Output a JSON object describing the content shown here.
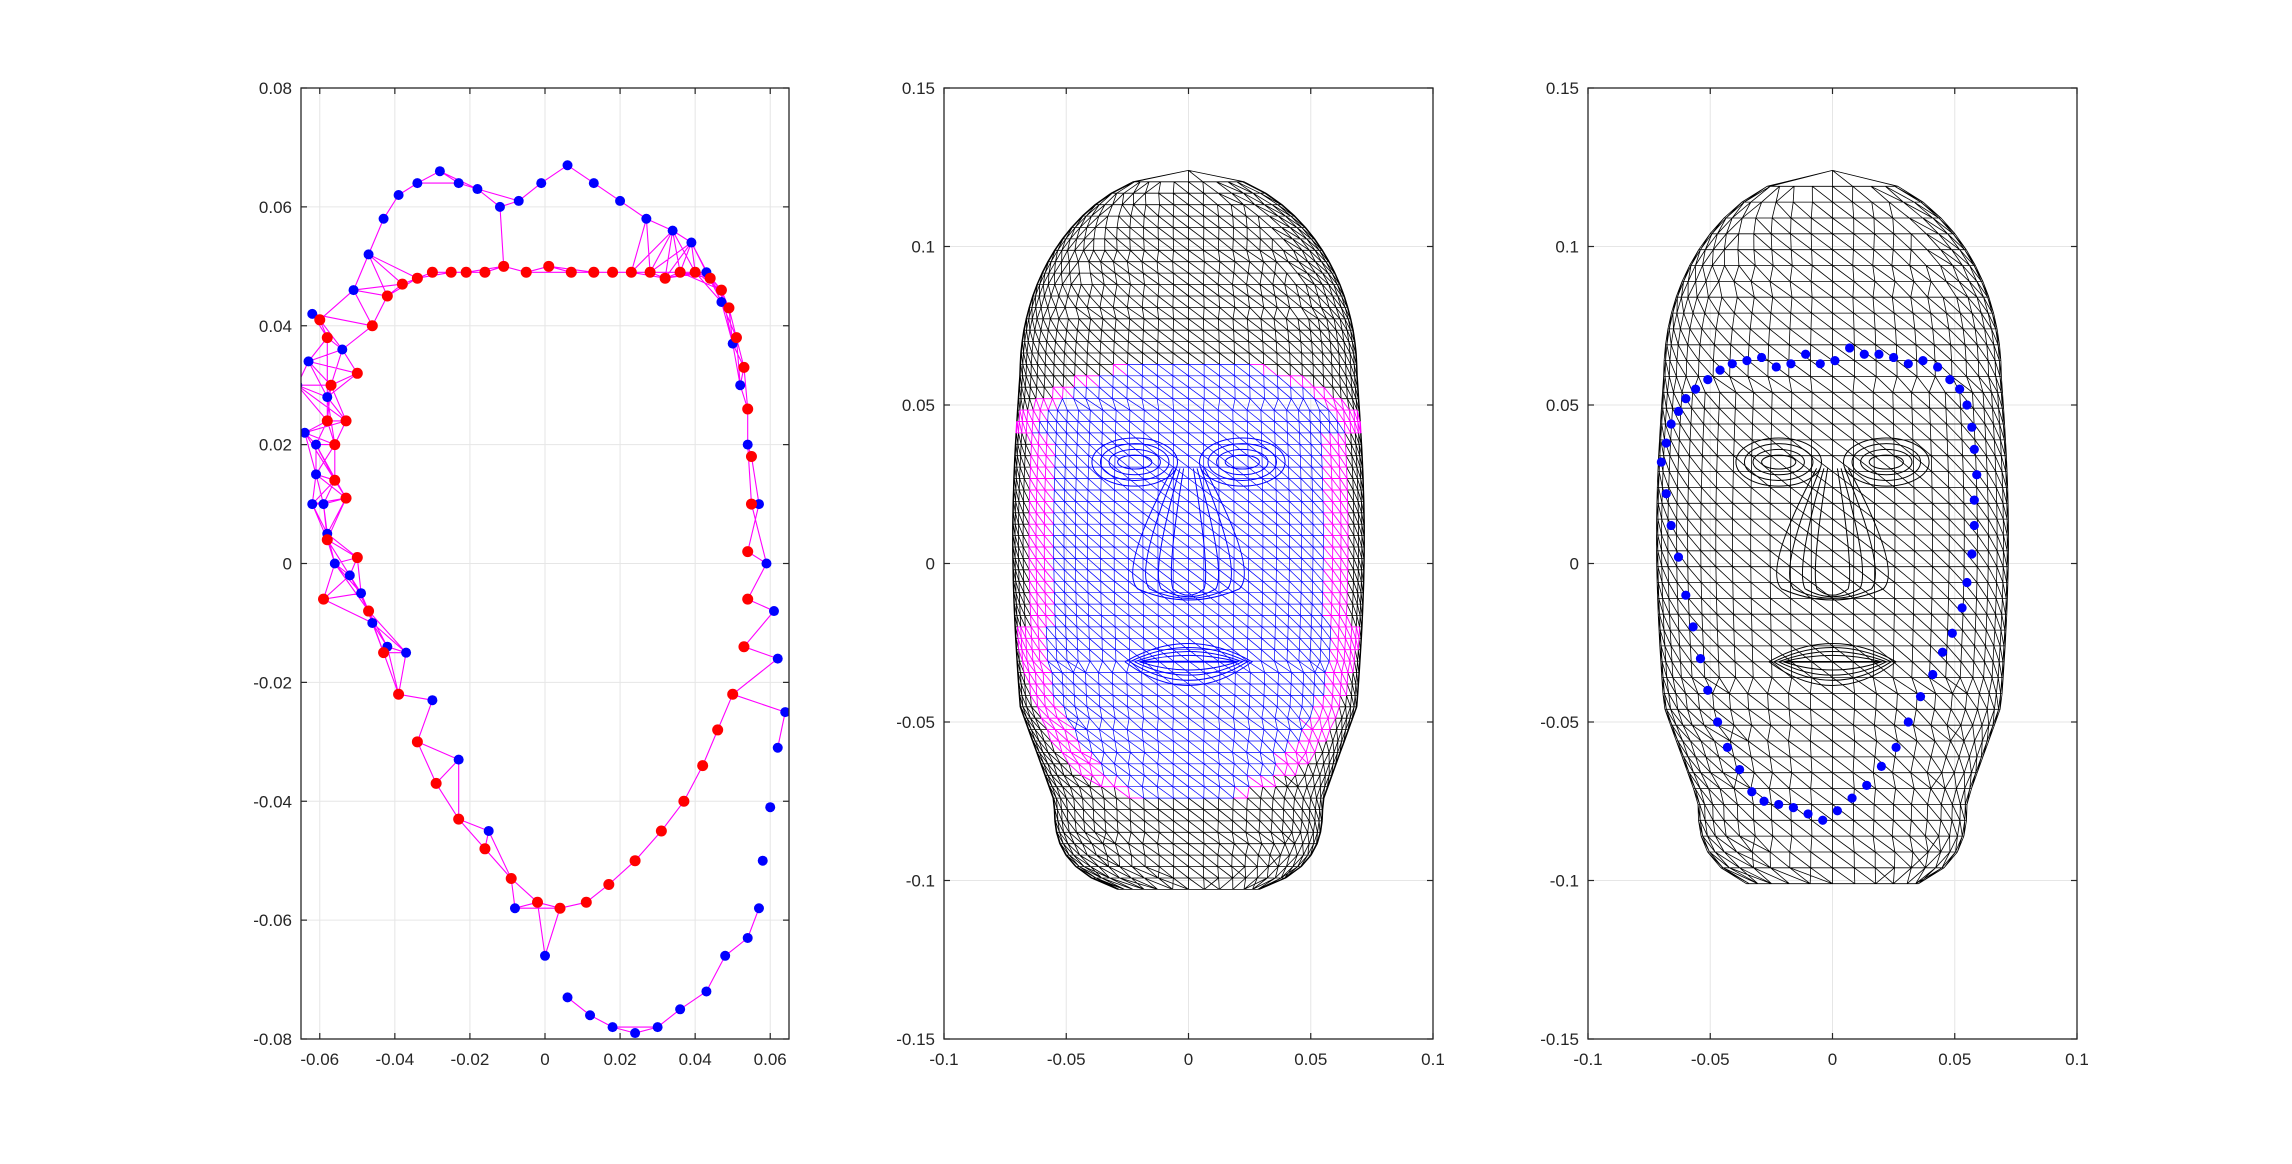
{
  "colors": {
    "axis": "#262626",
    "grid": "#e6e6e6",
    "outer_point": "#0000ff",
    "inner_point": "#ff0000",
    "band_mesh": "#ff00ff",
    "head_mesh": "#000000",
    "face_mesh": "#0000ff"
  },
  "chart_data": [
    {
      "type": "scatter",
      "title": "",
      "xlabel": "",
      "ylabel": "",
      "xlim": [
        -0.065,
        0.065
      ],
      "ylim": [
        -0.08,
        0.08
      ],
      "grid": true,
      "xticks": [
        -0.06,
        -0.04,
        -0.02,
        0,
        0.02,
        0.04,
        0.06
      ],
      "xtick_labels": [
        "-0.06",
        "-0.04",
        "-0.02",
        "0",
        "0.02",
        "0.04",
        "0.06"
      ],
      "yticks": [
        -0.08,
        -0.06,
        -0.04,
        -0.02,
        0,
        0.02,
        0.04,
        0.06,
        0.08
      ],
      "ytick_labels": [
        "-0.08",
        "-0.06",
        "-0.04",
        "-0.02",
        "0",
        "0.02",
        "0.04",
        "0.06",
        "0.08"
      ],
      "series": [
        {
          "color": "#0000ff",
          "marker": "dot",
          "x": [
            -0.062,
            -0.063,
            -0.066,
            -0.064,
            -0.061,
            -0.059,
            -0.058,
            -0.056,
            -0.052,
            -0.049,
            -0.046,
            -0.042,
            -0.037,
            -0.03,
            -0.023,
            -0.015,
            -0.008,
            0.0,
            0.006,
            0.012,
            0.018,
            0.024,
            0.03,
            0.036,
            0.043,
            0.048,
            0.054,
            0.057,
            0.058,
            0.06,
            0.062,
            0.064,
            0.062,
            0.061,
            0.059,
            0.057,
            0.054,
            0.052,
            0.05,
            0.047,
            0.043,
            0.039,
            0.034,
            0.027,
            0.02,
            0.013,
            0.006,
            -0.001,
            -0.007,
            -0.012,
            -0.018,
            -0.023,
            -0.028,
            -0.034,
            -0.039,
            -0.043,
            -0.047,
            -0.051,
            -0.054,
            -0.058,
            -0.061,
            -0.062
          ],
          "y": [
            0.042,
            0.034,
            0.03,
            0.022,
            0.015,
            0.01,
            0.005,
            0.0,
            -0.002,
            -0.005,
            -0.01,
            -0.014,
            -0.015,
            -0.023,
            -0.033,
            -0.045,
            -0.058,
            -0.066,
            -0.073,
            -0.076,
            -0.078,
            -0.079,
            -0.078,
            -0.075,
            -0.072,
            -0.066,
            -0.063,
            -0.058,
            -0.05,
            -0.041,
            -0.031,
            -0.025,
            -0.016,
            -0.008,
            0.0,
            0.01,
            0.02,
            0.03,
            0.037,
            0.044,
            0.049,
            0.054,
            0.056,
            0.058,
            0.061,
            0.064,
            0.067,
            0.064,
            0.061,
            0.06,
            0.063,
            0.064,
            0.066,
            0.064,
            0.062,
            0.058,
            0.052,
            0.046,
            0.036,
            0.028,
            0.02,
            0.01
          ]
        },
        {
          "color": "#ff0000",
          "marker": "dot",
          "x": [
            -0.06,
            -0.058,
            -0.057,
            -0.058,
            -0.056,
            -0.053,
            -0.05,
            -0.047,
            -0.043,
            -0.039,
            -0.034,
            -0.029,
            -0.023,
            -0.016,
            -0.009,
            -0.002,
            0.004,
            0.011,
            0.017,
            0.024,
            0.031,
            0.037,
            0.042,
            0.046,
            0.05,
            0.053,
            0.054,
            0.054,
            0.055,
            0.055,
            0.054,
            0.053,
            0.051,
            0.049,
            0.047,
            0.044,
            0.04,
            0.036,
            0.032,
            0.028,
            0.023,
            0.018,
            0.013,
            0.007,
            0.001,
            -0.005,
            -0.011,
            -0.016,
            -0.021,
            -0.025,
            -0.03,
            -0.034,
            -0.038,
            -0.042,
            -0.046,
            -0.05,
            -0.053,
            -0.056,
            -0.058,
            -0.059
          ],
          "y": [
            0.041,
            0.038,
            0.03,
            0.024,
            0.02,
            0.011,
            0.001,
            -0.008,
            -0.015,
            -0.022,
            -0.03,
            -0.037,
            -0.043,
            -0.048,
            -0.053,
            -0.057,
            -0.058,
            -0.057,
            -0.054,
            -0.05,
            -0.045,
            -0.04,
            -0.034,
            -0.028,
            -0.022,
            -0.014,
            -0.006,
            0.002,
            0.01,
            0.018,
            0.026,
            0.033,
            0.038,
            0.043,
            0.046,
            0.048,
            0.049,
            0.049,
            0.048,
            0.049,
            0.049,
            0.049,
            0.049,
            0.049,
            0.05,
            0.049,
            0.05,
            0.049,
            0.049,
            0.049,
            0.049,
            0.048,
            0.047,
            0.045,
            0.04,
            0.032,
            0.024,
            0.014,
            0.004,
            -0.006
          ]
        }
      ]
    },
    {
      "type": "scatter",
      "title": "",
      "xlabel": "",
      "ylabel": "",
      "xlim": [
        -0.1,
        0.1
      ],
      "ylim": [
        -0.15,
        0.15
      ],
      "grid": true,
      "xticks": [
        -0.1,
        -0.05,
        0,
        0.05,
        0.1
      ],
      "xtick_labels": [
        "-0.1",
        "-0.05",
        "0",
        "0.05",
        "0.1"
      ],
      "yticks": [
        -0.15,
        -0.1,
        -0.05,
        0,
        0.05,
        0.1,
        0.15
      ],
      "ytick_labels": [
        "-0.15",
        "-0.1",
        "-0.05",
        "0",
        "0.05",
        "0.1",
        "0.15"
      ]
    },
    {
      "type": "scatter",
      "title": "",
      "xlabel": "",
      "ylabel": "",
      "xlim": [
        -0.1,
        0.1
      ],
      "ylim": [
        -0.15,
        0.15
      ],
      "grid": true,
      "xticks": [
        -0.1,
        -0.05,
        0,
        0.05,
        0.1
      ],
      "xtick_labels": [
        "-0.1",
        "-0.05",
        "0",
        "0.05",
        "0.1"
      ],
      "yticks": [
        -0.15,
        -0.1,
        -0.05,
        0,
        0.05,
        0.1,
        0.15
      ],
      "ytick_labels": [
        "-0.15",
        "-0.1",
        "-0.05",
        "0",
        "0.05",
        "0.1",
        "0.15"
      ],
      "series": [
        {
          "color": "#0000ff",
          "marker": "dot",
          "x": [
            -0.07,
            -0.068,
            -0.066,
            -0.063,
            -0.06,
            -0.057,
            -0.054,
            -0.051,
            -0.047,
            -0.043,
            -0.038,
            -0.033,
            -0.028,
            -0.022,
            -0.016,
            -0.01,
            -0.004,
            0.002,
            0.008,
            0.014,
            0.02,
            0.026,
            0.031,
            0.036,
            0.041,
            0.045,
            0.049,
            0.053,
            0.055,
            0.057,
            0.058,
            0.058,
            0.059,
            0.058,
            0.057,
            0.055,
            0.052,
            0.048,
            0.043,
            0.037,
            0.031,
            0.025,
            0.019,
            0.013,
            0.007,
            0.001,
            -0.005,
            -0.011,
            -0.017,
            -0.023,
            -0.029,
            -0.035,
            -0.041,
            -0.046,
            -0.051,
            -0.056,
            -0.06,
            -0.063,
            -0.066,
            -0.068
          ],
          "y": [
            0.032,
            0.022,
            0.012,
            0.002,
            -0.01,
            -0.02,
            -0.03,
            -0.04,
            -0.05,
            -0.058,
            -0.065,
            -0.072,
            -0.075,
            -0.076,
            -0.077,
            -0.079,
            -0.081,
            -0.078,
            -0.074,
            -0.07,
            -0.064,
            -0.058,
            -0.05,
            -0.042,
            -0.035,
            -0.028,
            -0.022,
            -0.014,
            -0.006,
            0.003,
            0.012,
            0.02,
            0.028,
            0.036,
            0.043,
            0.05,
            0.055,
            0.058,
            0.062,
            0.064,
            0.063,
            0.065,
            0.066,
            0.066,
            0.068,
            0.064,
            0.063,
            0.066,
            0.063,
            0.062,
            0.065,
            0.064,
            0.063,
            0.061,
            0.058,
            0.055,
            0.052,
            0.048,
            0.044,
            0.038
          ]
        }
      ]
    }
  ]
}
